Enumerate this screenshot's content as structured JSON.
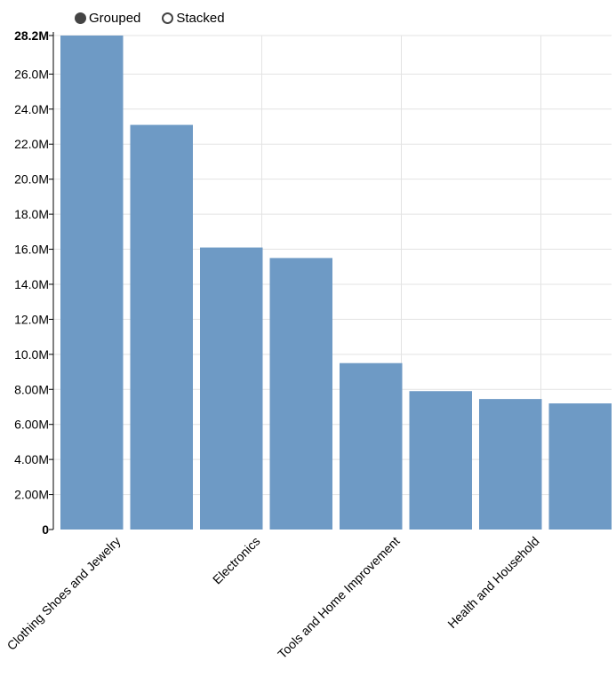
{
  "controls": {
    "grouped_label": "Grouped",
    "stacked_label": "Stacked",
    "selected": "Grouped"
  },
  "colors": {
    "bar": "#6b98c4",
    "grid": "#e3e3e3",
    "axis": "#000000"
  },
  "chart_data": {
    "type": "bar",
    "categories": [
      "Clothing Shoes and Jewelry",
      "",
      "Electronics",
      "",
      "Tools and Home Improvement",
      "",
      "Health and Household",
      ""
    ],
    "values": [
      28200000,
      23100000,
      16100000,
      15500000,
      9500000,
      7900000,
      7450000,
      7200000
    ],
    "yticks": [
      {
        "value": 0,
        "label": "0"
      },
      {
        "value": 2000000,
        "label": "2.00M"
      },
      {
        "value": 4000000,
        "label": "4.00M"
      },
      {
        "value": 6000000,
        "label": "6.00M"
      },
      {
        "value": 8000000,
        "label": "8.00M"
      },
      {
        "value": 10000000,
        "label": "10.0M"
      },
      {
        "value": 12000000,
        "label": "12.0M"
      },
      {
        "value": 14000000,
        "label": "14.0M"
      },
      {
        "value": 16000000,
        "label": "16.0M"
      },
      {
        "value": 18000000,
        "label": "18.0M"
      },
      {
        "value": 20000000,
        "label": "20.0M"
      },
      {
        "value": 22000000,
        "label": "22.0M"
      },
      {
        "value": 24000000,
        "label": "24.0M"
      },
      {
        "value": 26000000,
        "label": "26.0M"
      },
      {
        "value": 28200000,
        "label": "28.2M"
      }
    ],
    "ylim": [
      0,
      28200000
    ],
    "grid": true,
    "title": "",
    "xlabel": "",
    "ylabel": ""
  }
}
